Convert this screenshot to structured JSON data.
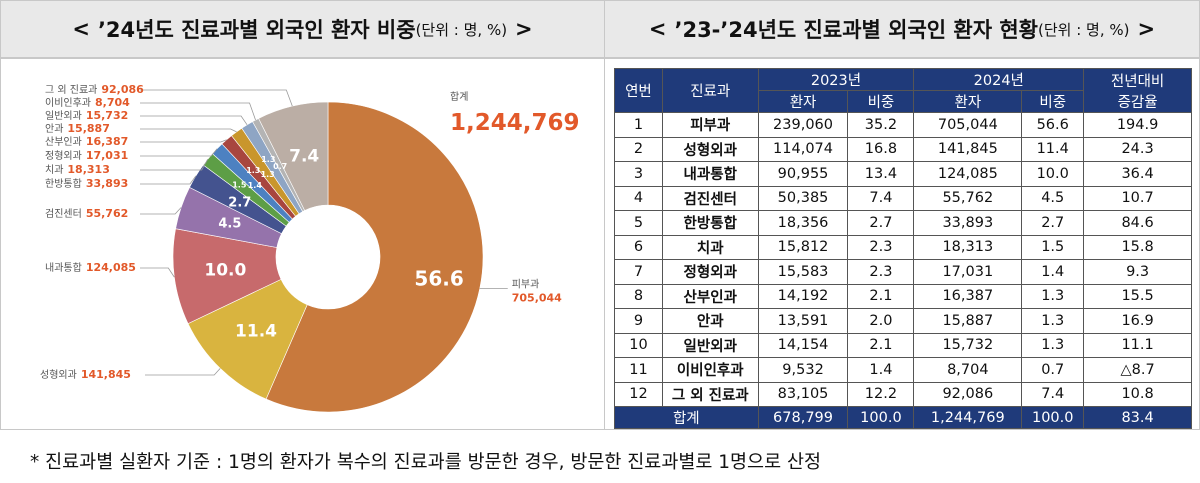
{
  "left_header": {
    "prefix": "<",
    "title": "’24년도 진료과별 외국인 환자 비중",
    "unit": "(단위 : 명, %)",
    "suffix": ">"
  },
  "chart_data": {
    "type": "pie",
    "hole": true,
    "categories": [
      "피부과",
      "성형외과",
      "내과통합",
      "검진센터",
      "한방통합",
      "치과",
      "정형외과",
      "산부인과",
      "안과",
      "일반외과",
      "이비인후과",
      "그 외 진료과"
    ],
    "values": [
      56.6,
      11.4,
      10.0,
      4.5,
      2.7,
      1.5,
      1.4,
      1.3,
      1.3,
      1.3,
      0.7,
      7.4
    ],
    "value_labels": [
      "56.6",
      "11.4",
      "10.0",
      "4.5",
      "2.7",
      "1.5",
      "1.4",
      "1.3",
      "1.3",
      "1.3",
      "0.7",
      "7.4"
    ],
    "count_labels": [
      "705,044",
      "141,845",
      "124,085",
      "55,762",
      "33,893",
      "18,313",
      "17,031",
      "16,387",
      "15,887",
      "15,732",
      "8,704",
      "92,086"
    ],
    "colors": [
      "#c8793d",
      "#d9b43f",
      "#c76a6c",
      "#9573ab",
      "#44538f",
      "#5d9e46",
      "#4d81c1",
      "#a8463f",
      "#c9962c",
      "#8ea5c4",
      "#b4b4b4",
      "#bbaea5"
    ],
    "total_label": "합계",
    "total": "1,244,769"
  },
  "right_header": {
    "prefix": "<",
    "title": "’23-’24년도 진료과별 외국인 환자 현황",
    "unit": "(단위 : 명, %)",
    "suffix": ">"
  },
  "table": {
    "columns": {
      "no": "연번",
      "dept": "진료과",
      "y2023": "2023년",
      "y2024": "2024년",
      "change": [
        "전년대비",
        "증감율"
      ]
    },
    "subcolumns": [
      "환자",
      "비중",
      "환자",
      "비중"
    ],
    "rows": [
      [
        "1",
        "피부과",
        "239,060",
        "35.2",
        "705,044",
        "56.6",
        "194.9"
      ],
      [
        "2",
        "성형외과",
        "114,074",
        "16.8",
        "141,845",
        "11.4",
        "24.3"
      ],
      [
        "3",
        "내과통합",
        "90,955",
        "13.4",
        "124,085",
        "10.0",
        "36.4"
      ],
      [
        "4",
        "검진센터",
        "50,385",
        "7.4",
        "55,762",
        "4.5",
        "10.7"
      ],
      [
        "5",
        "한방통합",
        "18,356",
        "2.7",
        "33,893",
        "2.7",
        "84.6"
      ],
      [
        "6",
        "치과",
        "15,812",
        "2.3",
        "18,313",
        "1.5",
        "15.8"
      ],
      [
        "7",
        "정형외과",
        "15,583",
        "2.3",
        "17,031",
        "1.4",
        "9.3"
      ],
      [
        "8",
        "산부인과",
        "14,192",
        "2.1",
        "16,387",
        "1.3",
        "15.5"
      ],
      [
        "9",
        "안과",
        "13,591",
        "2.0",
        "15,887",
        "1.3",
        "16.9"
      ],
      [
        "10",
        "일반외과",
        "14,154",
        "2.1",
        "15,732",
        "1.3",
        "11.1"
      ],
      [
        "11",
        "이비인후과",
        "9,532",
        "1.4",
        "8,704",
        "0.7",
        "△8.7"
      ],
      [
        "12",
        "그 외 진료과",
        "83,105",
        "12.2",
        "92,086",
        "7.4",
        "10.8"
      ]
    ],
    "total": [
      "합계",
      "678,799",
      "100.0",
      "1,244,769",
      "100.0",
      "83.4"
    ]
  },
  "footnote": "* 진료과별 실환자 기준 : 1명의 환자가 복수의 진료과를 방문한 경우, 방문한 진료과별로 1명으로 산정"
}
